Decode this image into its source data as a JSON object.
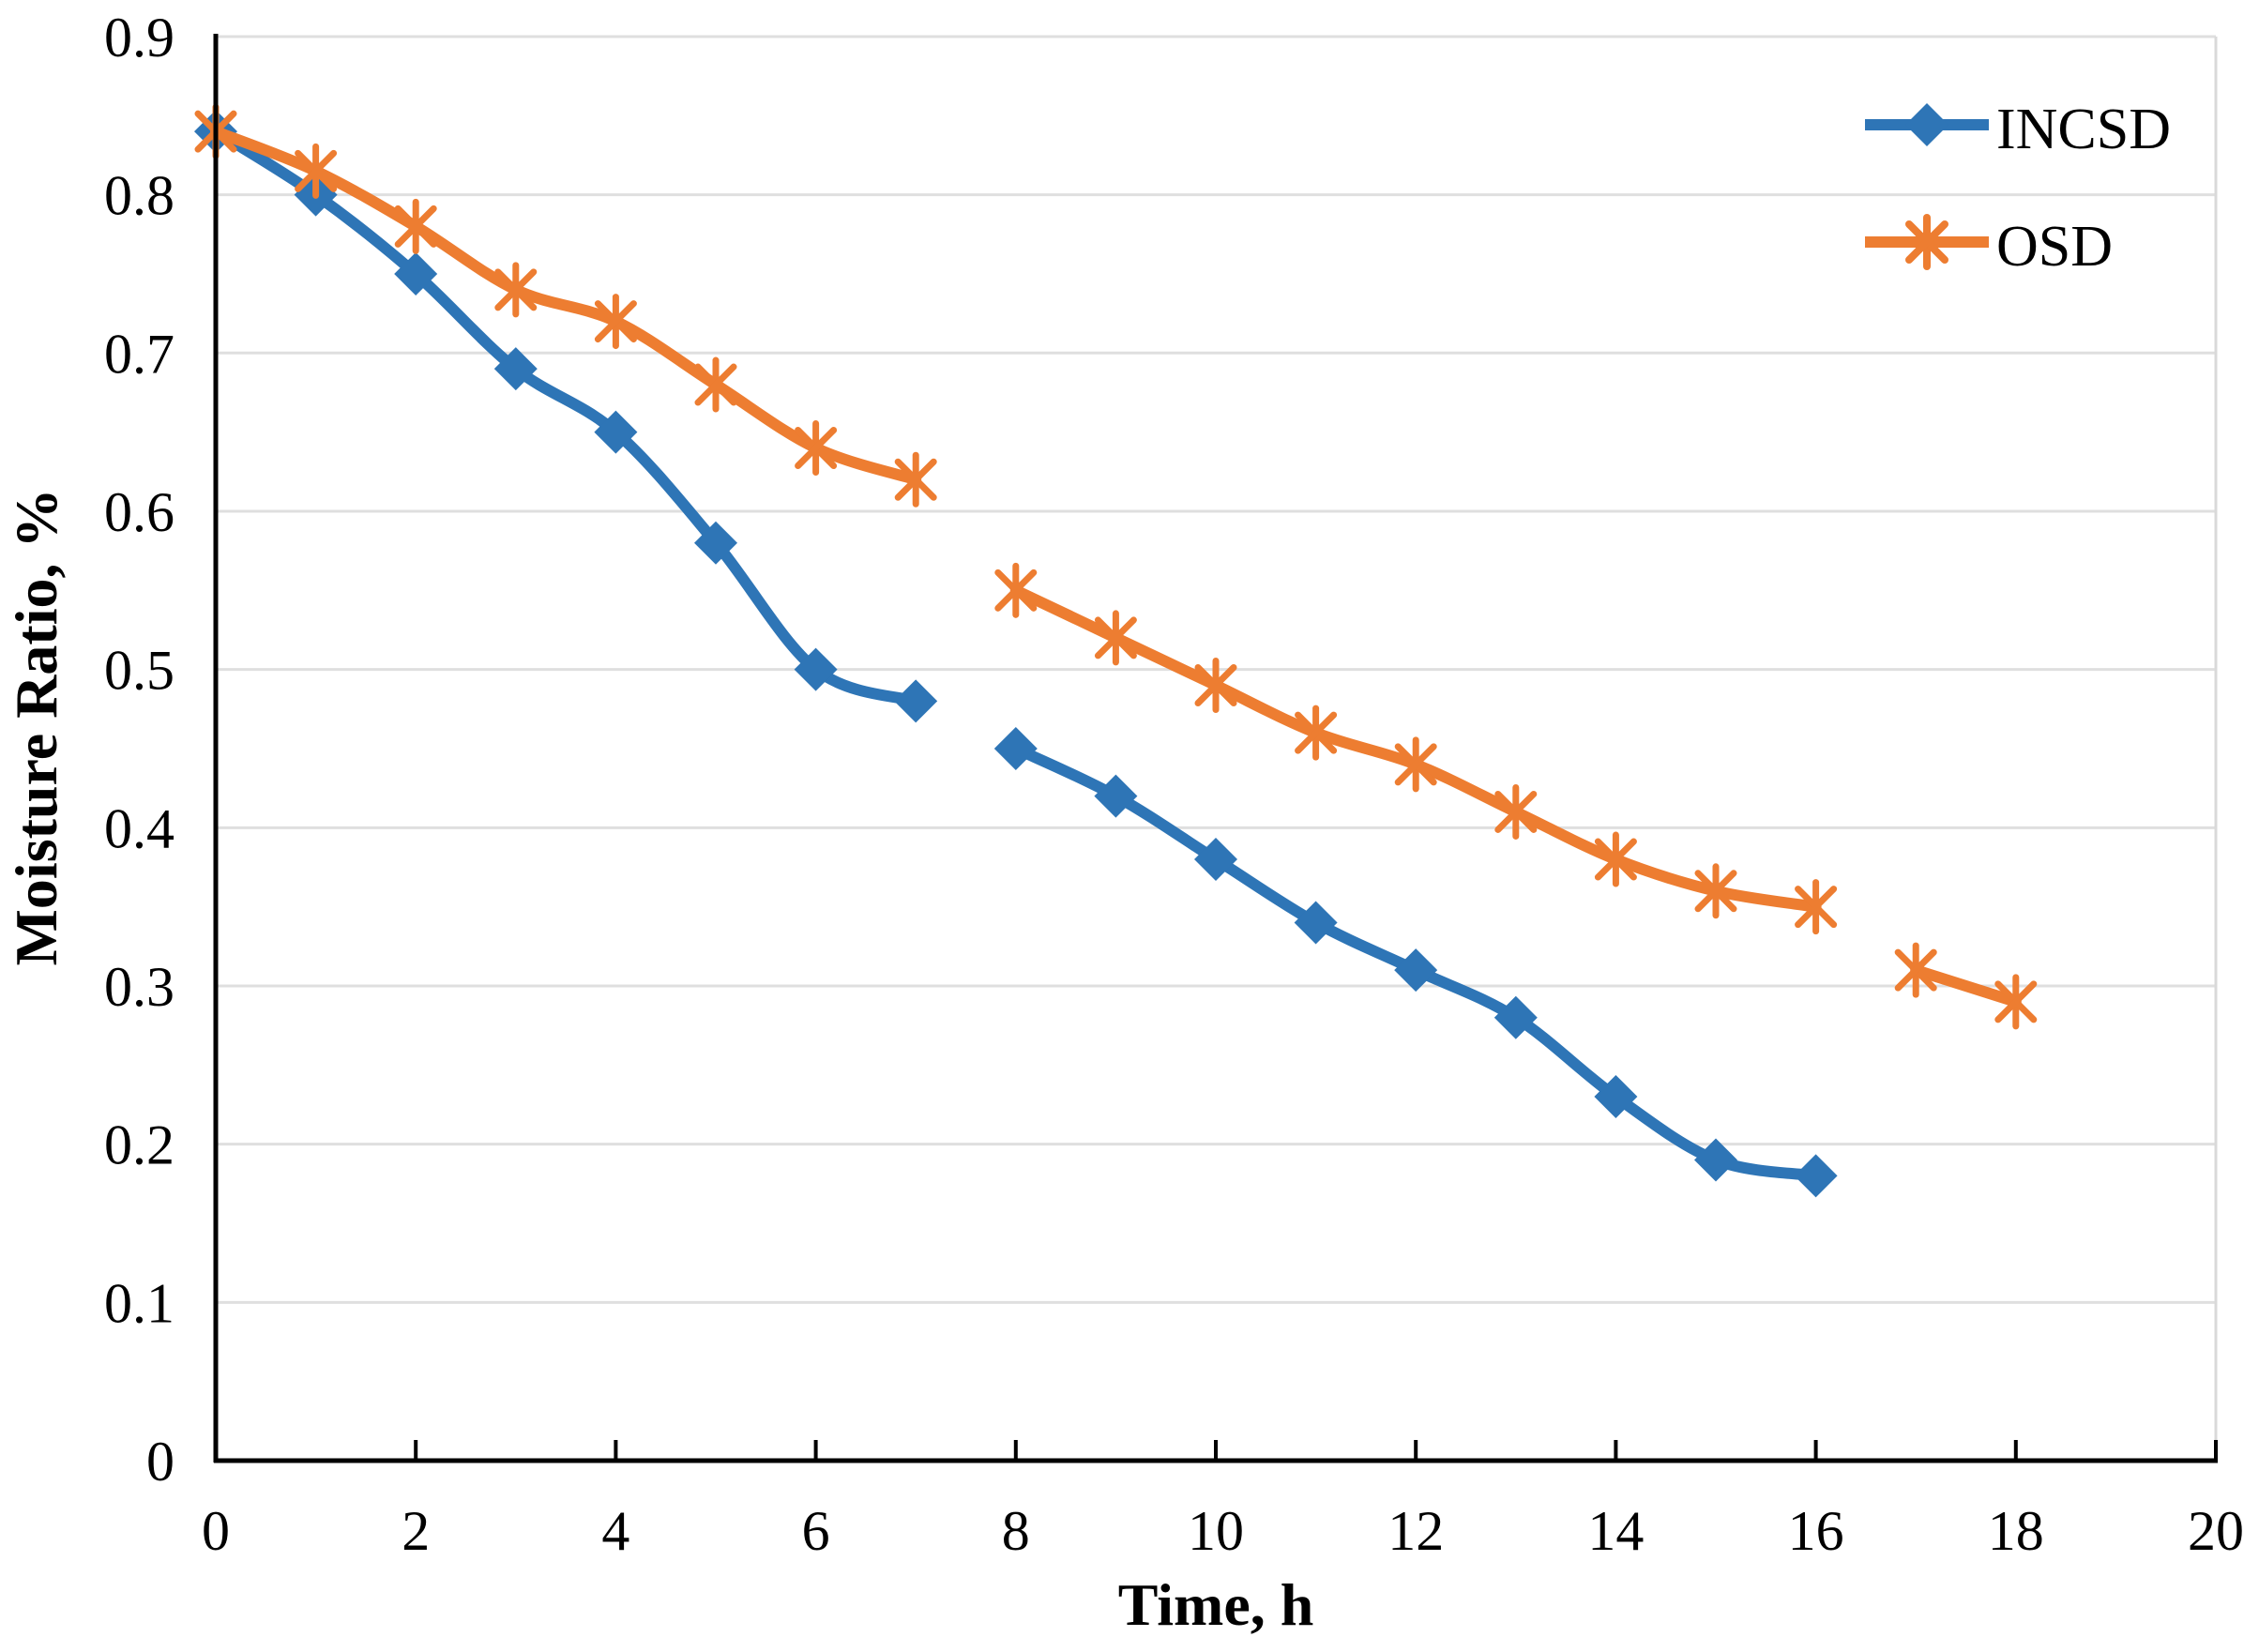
{
  "figure": {
    "background": "#FFFFFF"
  },
  "colors": {
    "incsd": "#2E75B6",
    "osd": "#ED7D31",
    "gridline": "#DFDFDF",
    "plot_border": "#D9D9D9",
    "axis": "#000000",
    "text": "#000000"
  },
  "legend": {
    "items": [
      {
        "label": "INCSD",
        "color": "#2E75B6",
        "marker": "diamond"
      },
      {
        "label": "OSD",
        "color": "#ED7D31",
        "marker": "asterisk"
      }
    ]
  },
  "axes": {
    "x_tick_labels": [
      "0",
      "2",
      "4",
      "6",
      "8",
      "10",
      "12",
      "14",
      "16",
      "18",
      "20"
    ],
    "y_tick_labels": [
      "0",
      "0.1",
      "0.2",
      "0.3",
      "0.4",
      "0.5",
      "0.6",
      "0.7",
      "0.8",
      "0.9"
    ]
  },
  "chart_data": {
    "type": "line",
    "title": "",
    "xlabel": "Time, h",
    "ylabel": "Moisture Ratio, %",
    "xlim": [
      0,
      20
    ],
    "ylim": [
      0,
      0.9
    ],
    "x_ticks": [
      0,
      2,
      4,
      6,
      8,
      10,
      12,
      14,
      16,
      18,
      20
    ],
    "y_ticks": [
      0,
      0.1,
      0.2,
      0.3,
      0.4,
      0.5,
      0.6,
      0.7,
      0.8,
      0.9
    ],
    "grid": "horizontal",
    "legend_position": "inside-top-right",
    "series": [
      {
        "name": "INCSD",
        "color": "#2E75B6",
        "marker": "diamond",
        "line_style": "smooth",
        "x": [
          0,
          1,
          2,
          3,
          4,
          5,
          6,
          7,
          8,
          9,
          10,
          11,
          12,
          13,
          14,
          15,
          16
        ],
        "values": [
          0.84,
          0.8,
          0.75,
          0.69,
          0.65,
          0.58,
          0.5,
          0.48,
          0.45,
          0.42,
          0.38,
          0.34,
          0.31,
          0.28,
          0.23,
          0.19,
          0.18
        ],
        "segments": [
          [
            0,
            7
          ],
          [
            8,
            16
          ]
        ]
      },
      {
        "name": "OSD",
        "color": "#ED7D31",
        "marker": "asterisk",
        "line_style": "smooth",
        "x": [
          0,
          1,
          2,
          3,
          4,
          5,
          6,
          7,
          8,
          9,
          10,
          11,
          12,
          13,
          14,
          15,
          16,
          17,
          18
        ],
        "values": [
          0.84,
          0.815,
          0.78,
          0.74,
          0.72,
          0.68,
          0.64,
          0.62,
          0.55,
          0.52,
          0.49,
          0.46,
          0.44,
          0.41,
          0.38,
          0.36,
          0.35,
          0.31,
          0.29
        ],
        "segments": [
          [
            0,
            7
          ],
          [
            8,
            16
          ],
          [
            17,
            18
          ]
        ]
      }
    ]
  }
}
